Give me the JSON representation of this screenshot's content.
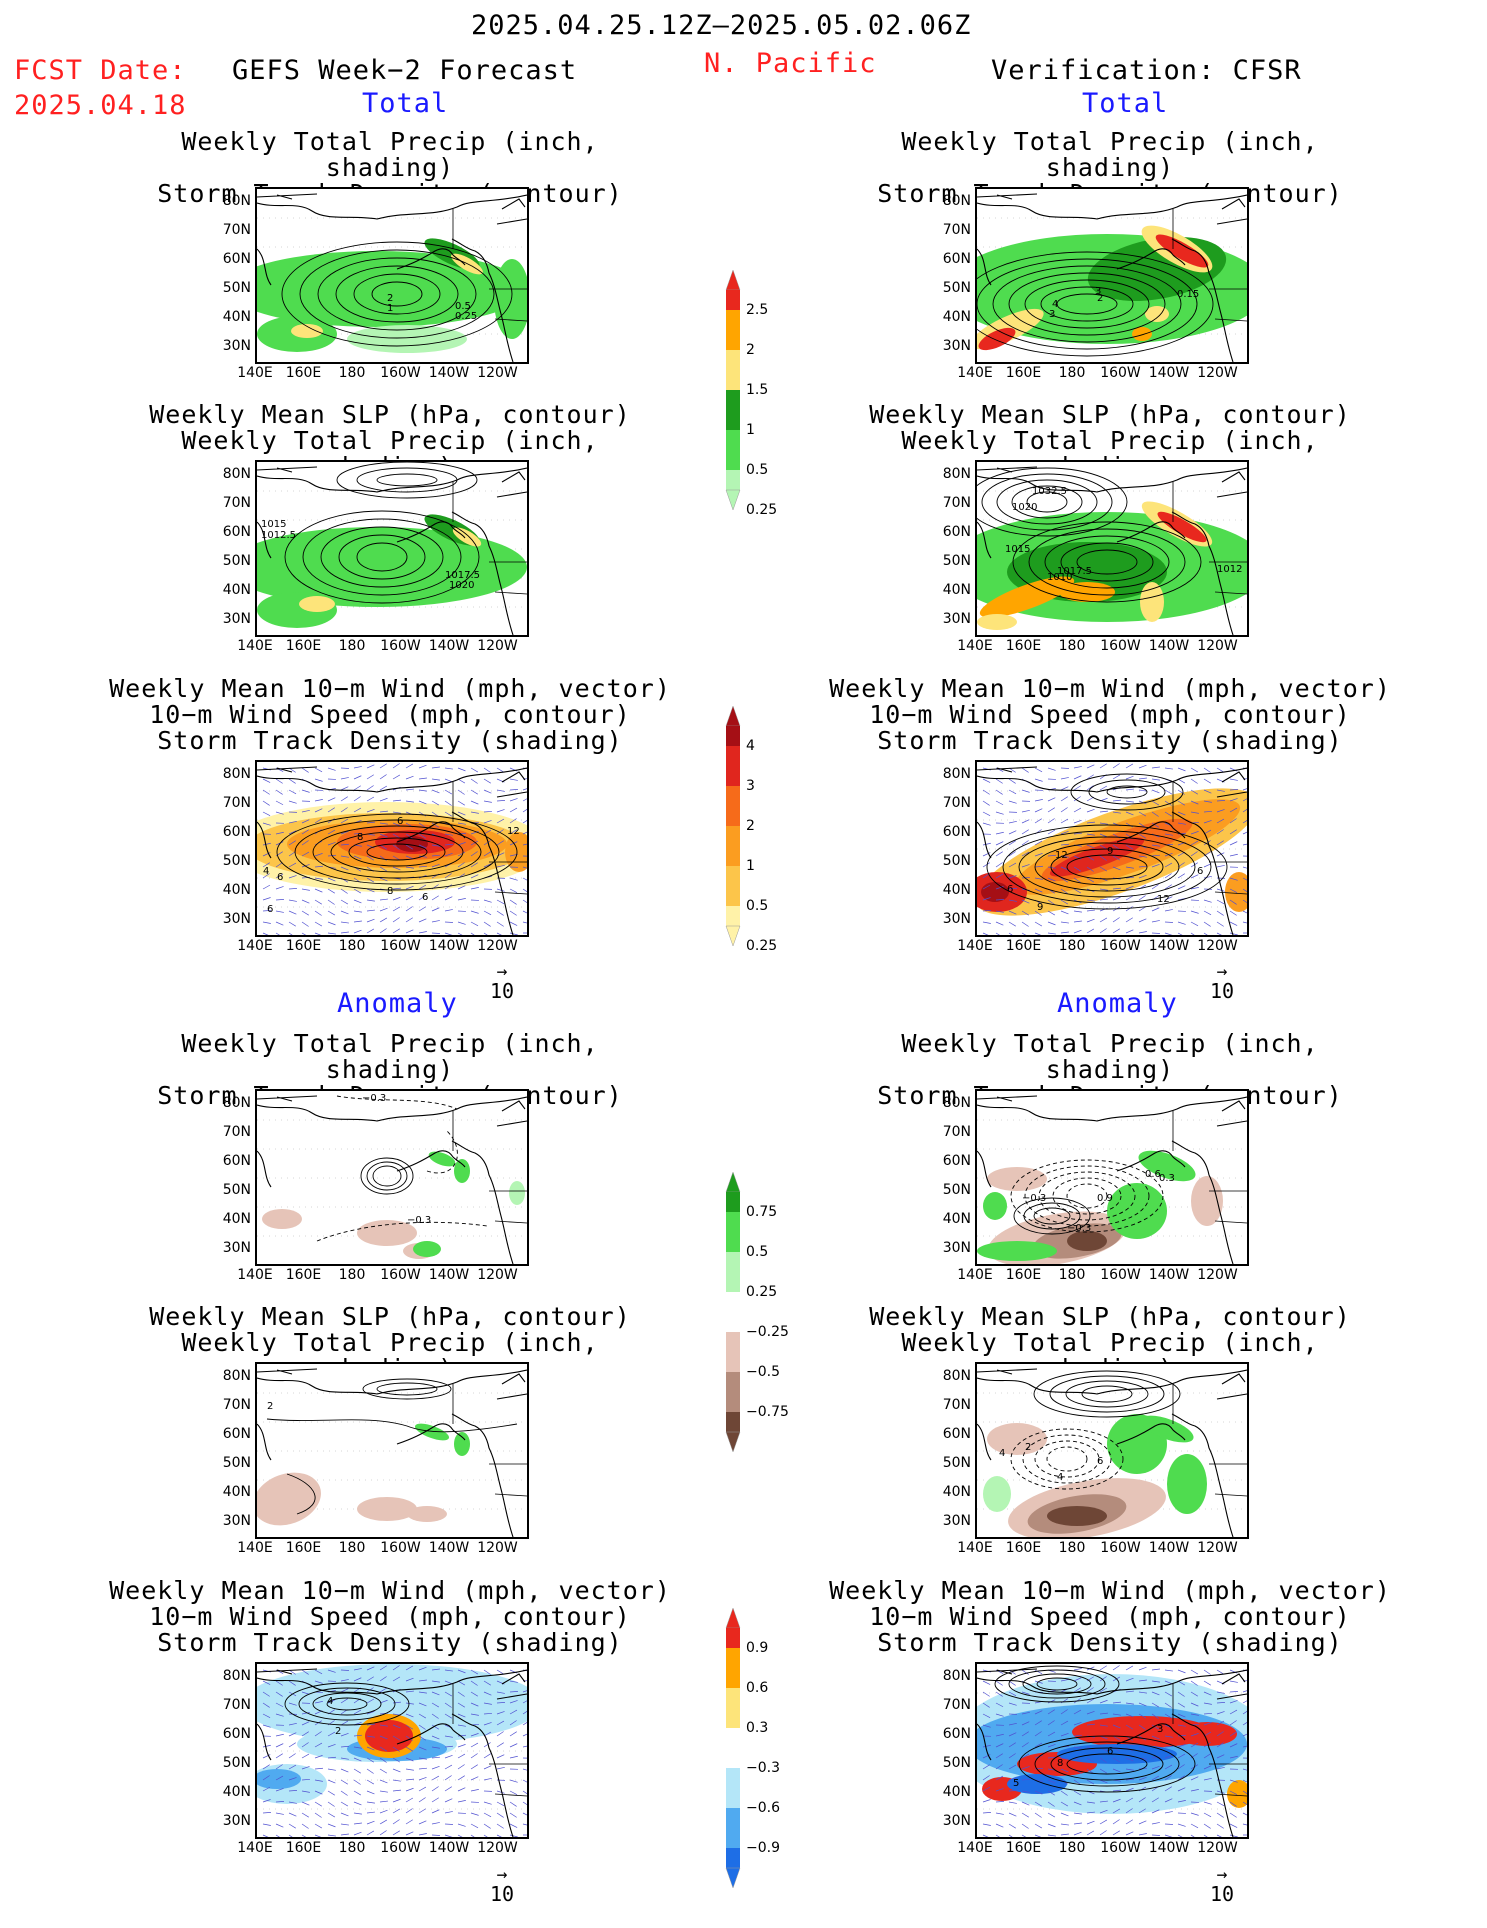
{
  "header": {
    "period": "2025.04.25.12Z—2025.05.02.06Z",
    "fcst_label": "FCST Date:",
    "fcst_date": "2025.04.18",
    "left_model": "GEFS Week−2 Forecast",
    "region": "N. Pacific",
    "right_model": "Verification: CFSR"
  },
  "sections": {
    "total": "Total",
    "anomaly": "Anomaly"
  },
  "titles": {
    "precip_storm": [
      "Weekly Total Precip (inch, shading)",
      "Storm Track Density (contour)"
    ],
    "slp_precip": [
      "Weekly Mean SLP (hPa, contour)",
      "Weekly Total Precip (inch, shading)"
    ],
    "wind_storm": [
      "Weekly Mean 10−m Wind (mph, vector)",
      "10−m Wind Speed (mph, contour)",
      "Storm Track Density (shading)"
    ]
  },
  "axes": {
    "lat_labels": [
      "80N",
      "70N",
      "60N",
      "50N",
      "40N",
      "30N"
    ],
    "lon_labels": [
      "140E",
      "160E",
      "180",
      "160W",
      "140W",
      "120W"
    ]
  },
  "vector_ref": "10",
  "colorbars": {
    "precip_total": {
      "labels": [
        "2.5",
        "2",
        "1.5",
        "1",
        "0.5",
        "0.25"
      ],
      "colors": [
        "#e8281e",
        "#ffa500",
        "#fde47a",
        "#1e9c1e",
        "#4fdc4f",
        "#b4f5b4"
      ]
    },
    "storm_total": {
      "labels": [
        "4",
        "3",
        "2",
        "1",
        "0.5",
        "0.25"
      ],
      "colors": [
        "#a50f15",
        "#e0261e",
        "#f66b1a",
        "#fb9d20",
        "#fcc54a",
        "#fff2a8"
      ]
    },
    "precip_anom": {
      "labels": [
        "0.75",
        "0.5",
        "0.25",
        "−0.25",
        "−0.5",
        "−0.75"
      ],
      "colors": [
        "#1e9c1e",
        "#4fdc4f",
        "#b4f5b4",
        "#ffffff",
        "#e6c4b8",
        "#b48c7c",
        "#6e4636"
      ]
    },
    "storm_anom": {
      "labels": [
        "0.9",
        "0.6",
        "0.3",
        "−0.3",
        "−0.6",
        "−0.9"
      ],
      "colors": [
        "#e8281e",
        "#ffa500",
        "#fde47a",
        "#ffffff",
        "#b4e6f8",
        "#50aaf0",
        "#1e6ee6"
      ]
    }
  },
  "contour_labels": {
    "p1L": [
      "2",
      "1",
      "0.5",
      "0.25"
    ],
    "p1R": [
      "4",
      "3",
      "2",
      "3",
      "0.15"
    ],
    "p2L": [
      "1015",
      "1012.5",
      "1017.5",
      "1020"
    ],
    "p2R": [
      "1032.5",
      "1020",
      "1015",
      "1017.5",
      "1010",
      "1012"
    ],
    "p3L": [
      "6",
      "8",
      "4",
      "6",
      "8",
      "6",
      "12",
      "6"
    ],
    "p3R": [
      "12",
      "9",
      "6",
      "9",
      "6",
      "12"
    ],
    "p4L": [
      "−0.3",
      "−0.3"
    ],
    "p4R": [
      "−0.3",
      "−0.3",
      "0.9",
      "0.6",
      "0.3"
    ],
    "p5L": [
      "2"
    ],
    "p5R": [
      "4",
      "2",
      "6",
      "4"
    ],
    "p6L": [
      "4",
      "2"
    ],
    "p6R": [
      "3",
      "6",
      "8",
      "5"
    ]
  }
}
